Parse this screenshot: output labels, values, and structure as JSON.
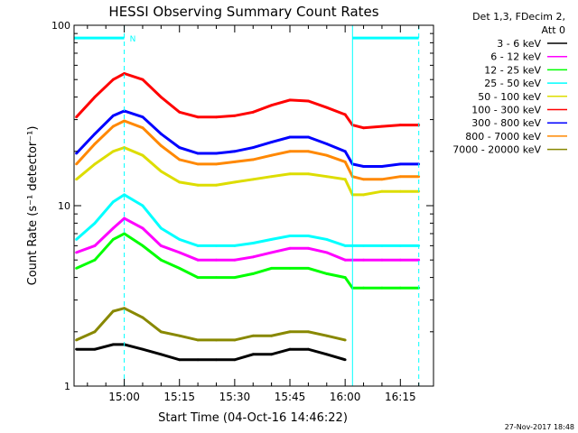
{
  "chart_data": {
    "type": "line",
    "title": "HESSI Observing Summary Count Rates",
    "xlabel": "Start Time (04-Oct-16 14:46:22)",
    "ylabel": "Count Rate (s⁻¹ detector⁻¹)",
    "yscale": "log",
    "ylim": [
      1,
      100
    ],
    "xlim": [
      "14:46:22",
      "16:24:00"
    ],
    "x_tick_labels": [
      "15:00",
      "15:15",
      "15:30",
      "15:45",
      "16:00",
      "16:15"
    ],
    "y_tick_labels": [
      "1",
      "10",
      "100"
    ],
    "x": [
      "14:47",
      "14:52",
      "14:57",
      "15:00",
      "15:05",
      "15:10",
      "15:15",
      "15:20",
      "15:25",
      "15:30",
      "15:35",
      "15:40",
      "15:45",
      "15:50",
      "15:55",
      "16:00",
      "16:02",
      "16:05",
      "16:10",
      "16:15",
      "16:20"
    ],
    "series": [
      {
        "name": "3 - 6 keV",
        "color": "#000000",
        "values": [
          1.6,
          1.6,
          1.7,
          1.7,
          1.6,
          1.5,
          1.4,
          1.4,
          1.4,
          1.4,
          1.5,
          1.5,
          1.6,
          1.6,
          1.5,
          1.4,
          null,
          null,
          null,
          null,
          null
        ]
      },
      {
        "name": "6 - 12 keV",
        "color": "#ff00ff",
        "values": [
          5.5,
          6.0,
          7.5,
          8.5,
          7.5,
          6.0,
          5.5,
          5.0,
          5.0,
          5.0,
          5.2,
          5.5,
          5.8,
          5.8,
          5.5,
          5.0,
          5.0,
          5.0,
          5.0,
          5.0,
          5.0
        ]
      },
      {
        "name": "12 - 25 keV",
        "color": "#00ff00",
        "values": [
          4.5,
          5.0,
          6.5,
          7.0,
          6.0,
          5.0,
          4.5,
          4.0,
          4.0,
          4.0,
          4.2,
          4.5,
          4.5,
          4.5,
          4.2,
          4.0,
          3.5,
          3.5,
          3.5,
          3.5,
          3.5
        ]
      },
      {
        "name": "25 - 50 keV",
        "color": "#00ffff",
        "values": [
          6.5,
          8.0,
          10.5,
          11.5,
          10.0,
          7.5,
          6.5,
          6.0,
          6.0,
          6.0,
          6.2,
          6.5,
          6.8,
          6.8,
          6.5,
          6.0,
          6.0,
          6.0,
          6.0,
          6.0,
          6.0
        ]
      },
      {
        "name": "50 - 100 keV",
        "color": "#dddd00",
        "values": [
          14.0,
          17.0,
          20.0,
          21.0,
          19.0,
          15.5,
          13.5,
          13.0,
          13.0,
          13.5,
          14.0,
          14.5,
          15.0,
          15.0,
          14.5,
          14.0,
          11.5,
          11.5,
          12.0,
          12.0,
          12.0
        ]
      },
      {
        "name": "100 - 300 keV",
        "color": "#ff0000",
        "values": [
          31.0,
          40.0,
          50.0,
          54.0,
          50.0,
          40.0,
          33.0,
          31.0,
          31.0,
          31.5,
          33.0,
          36.0,
          38.5,
          38.0,
          35.0,
          32.0,
          28.0,
          27.0,
          27.5,
          28.0,
          28.0
        ]
      },
      {
        "name": "300 - 800 keV",
        "color": "#0000ff",
        "values": [
          19.5,
          25.0,
          31.5,
          33.5,
          31.0,
          25.0,
          21.0,
          19.5,
          19.5,
          20.0,
          21.0,
          22.5,
          24.0,
          24.0,
          22.0,
          20.0,
          17.0,
          16.5,
          16.5,
          17.0,
          17.0
        ]
      },
      {
        "name": "800 - 7000 keV",
        "color": "#ff8800",
        "values": [
          17.0,
          22.0,
          27.5,
          29.5,
          27.0,
          21.5,
          18.0,
          17.0,
          17.0,
          17.5,
          18.0,
          19.0,
          20.0,
          20.0,
          19.0,
          17.5,
          14.5,
          14.0,
          14.0,
          14.5,
          14.5
        ]
      },
      {
        "name": "7000 - 20000 keV",
        "color": "#888800",
        "values": [
          1.8,
          2.0,
          2.6,
          2.7,
          2.4,
          2.0,
          1.9,
          1.8,
          1.8,
          1.8,
          1.9,
          1.9,
          2.0,
          2.0,
          1.9,
          1.8,
          null,
          null,
          null,
          null,
          null
        ]
      }
    ],
    "legend": {
      "placement": "right",
      "header": [
        "Det 1,3, FDecim 2,",
        "Att 0"
      ]
    },
    "annotations": [
      {
        "text": "N",
        "color": "#00ffff",
        "x": "15:00"
      },
      {
        "type": "vline",
        "x": "15:00",
        "color": "#00ffff",
        "style": "dashed"
      },
      {
        "type": "vline",
        "x": "16:02",
        "color": "#00ffff",
        "style": "solid"
      },
      {
        "type": "vline",
        "x": "16:20",
        "color": "#00ffff",
        "style": "dashed"
      },
      {
        "type": "hbar",
        "x_start": "14:46:22",
        "x_end": "15:00",
        "y": 85,
        "color": "#00ffff"
      },
      {
        "type": "hbar",
        "x_start": "16:02",
        "x_end": "16:20",
        "y": 85,
        "color": "#00ffff"
      }
    ]
  },
  "footer": {
    "date": "27-Nov-2017 18:48"
  }
}
